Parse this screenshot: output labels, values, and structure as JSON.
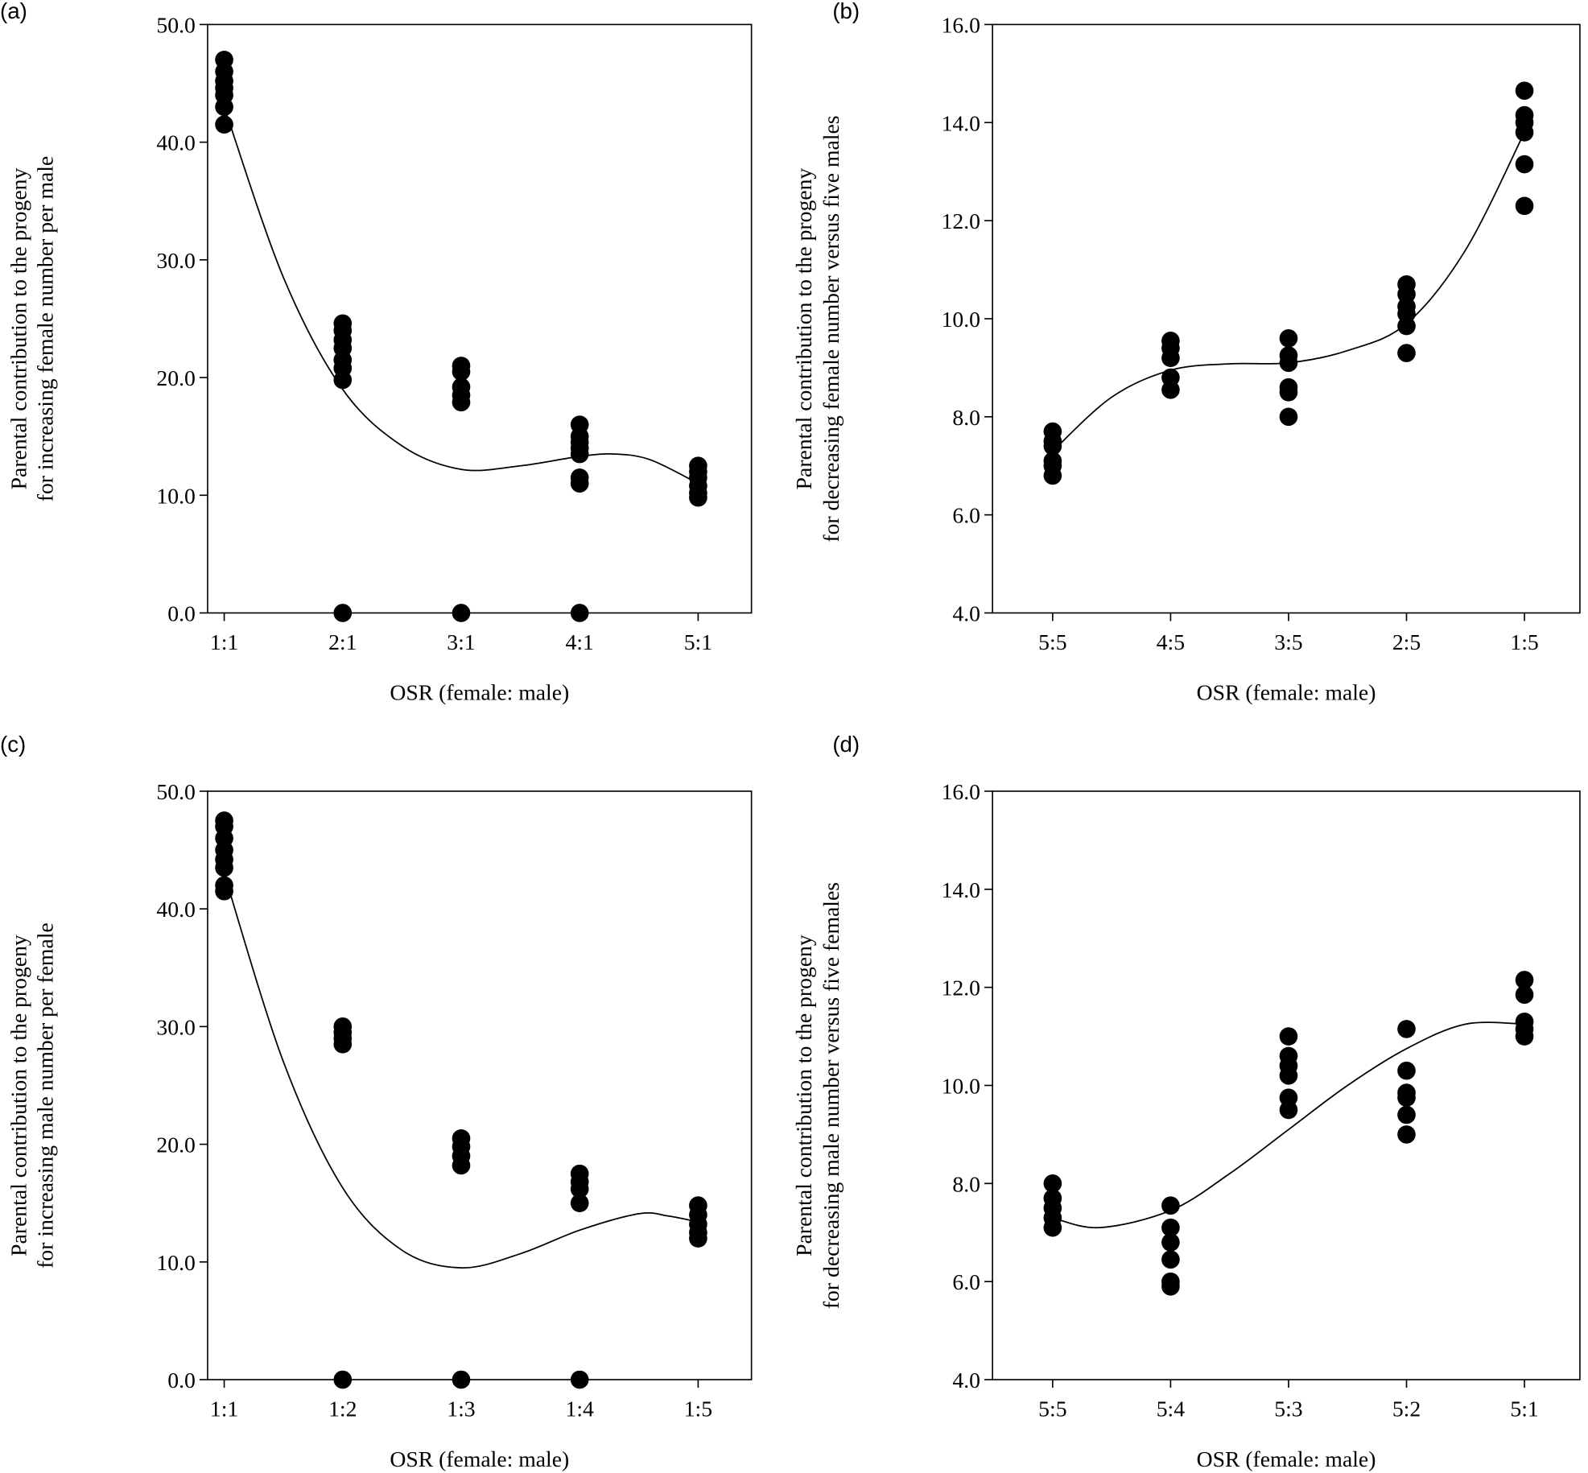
{
  "chart_data": [
    {
      "panel": "(a)",
      "type": "scatter",
      "xlabel": "OSR (female: male)",
      "ylabel": [
        "Parental contribution to the progeny",
        "for increasing female number per male"
      ],
      "categories": [
        "1:1",
        "2:1",
        "3:1",
        "4:1",
        "5:1"
      ],
      "ylim": [
        0,
        50
      ],
      "yticks": [
        "0.0",
        "10.0",
        "20.0",
        "30.0",
        "40.0",
        "50.0"
      ],
      "points": [
        [
          47.0,
          46.0,
          45.2,
          44.6,
          44.0,
          43.0,
          41.5
        ],
        [
          24.6,
          24.0,
          23.2,
          22.5,
          21.5,
          20.8,
          19.8,
          0
        ],
        [
          21.0,
          20.5,
          19.2,
          18.5,
          17.9,
          0
        ],
        [
          16.0,
          15.0,
          14.5,
          14.0,
          13.5,
          11.5,
          11.0,
          0
        ],
        [
          12.5,
          12.0,
          11.5,
          10.8,
          10.2,
          9.8
        ]
      ],
      "fit": [
        [
          1,
          43
        ],
        [
          1.5,
          28.5
        ],
        [
          2,
          19
        ],
        [
          2.5,
          14.2
        ],
        [
          3,
          12.2
        ],
        [
          3.5,
          12.5
        ],
        [
          4,
          13.3
        ],
        [
          4.3,
          13.5
        ],
        [
          4.6,
          13.0
        ],
        [
          5,
          11.0
        ]
      ]
    },
    {
      "panel": "(b)",
      "type": "scatter",
      "xlabel": "OSR (female: male)",
      "ylabel": [
        "Parental contribution to the progeny",
        "for decreasing female number versus five males"
      ],
      "categories": [
        "5:5",
        "4:5",
        "3:5",
        "2:5",
        "1:5"
      ],
      "ylim": [
        4,
        16
      ],
      "yticks": [
        "4.0",
        "6.0",
        "8.0",
        "10.0",
        "12.0",
        "14.0",
        "16.0"
      ],
      "points": [
        [
          7.7,
          7.5,
          7.4,
          7.1,
          7.0,
          6.8
        ],
        [
          9.55,
          9.4,
          9.2,
          8.8,
          8.55
        ],
        [
          9.6,
          9.25,
          9.1,
          8.6,
          8.5,
          8.0
        ],
        [
          10.7,
          10.5,
          10.25,
          10.1,
          9.85,
          9.3
        ],
        [
          14.65,
          14.15,
          14.0,
          13.8,
          13.15,
          12.3
        ]
      ],
      "fit": [
        [
          1,
          7.3
        ],
        [
          1.5,
          8.4
        ],
        [
          2,
          8.95
        ],
        [
          2.5,
          9.08
        ],
        [
          3,
          9.1
        ],
        [
          3.5,
          9.35
        ],
        [
          4,
          9.9
        ],
        [
          4.5,
          11.4
        ],
        [
          5,
          13.8
        ]
      ]
    },
    {
      "panel": "(c)",
      "type": "scatter",
      "xlabel": "OSR (female: male)",
      "ylabel": [
        "Parental contribution to the progeny",
        "for increasing male number per female"
      ],
      "categories": [
        "1:1",
        "1:2",
        "1:3",
        "1:4",
        "1:5"
      ],
      "ylim": [
        0,
        50
      ],
      "yticks": [
        "0.0",
        "10.0",
        "20.0",
        "30.0",
        "40.0",
        "50.0"
      ],
      "points": [
        [
          47.5,
          47.0,
          46.0,
          45.0,
          44.2,
          43.5,
          42.0,
          41.5
        ],
        [
          30.0,
          29.5,
          29.0,
          28.5,
          0
        ],
        [
          20.5,
          19.8,
          19.0,
          18.2,
          0
        ],
        [
          17.5,
          16.8,
          16.2,
          15.0,
          0
        ],
        [
          14.8,
          14.0,
          13.2,
          12.5,
          12.0
        ]
      ],
      "fit": [
        [
          1,
          43
        ],
        [
          1.5,
          27
        ],
        [
          2,
          16.3
        ],
        [
          2.5,
          11
        ],
        [
          3,
          9.5
        ],
        [
          3.5,
          10.7
        ],
        [
          4,
          12.7
        ],
        [
          4.5,
          14.1
        ],
        [
          4.75,
          13.9
        ],
        [
          5,
          13.4
        ]
      ]
    },
    {
      "panel": "(d)",
      "type": "scatter",
      "xlabel": "OSR (female: male)",
      "ylabel": [
        "Parental contribution to the progeny",
        "for decreasing male number versus five females"
      ],
      "categories": [
        "5:5",
        "5:4",
        "5:3",
        "5:2",
        "5:1"
      ],
      "ylim": [
        4,
        16
      ],
      "yticks": [
        "4.0",
        "6.0",
        "8.0",
        "10.0",
        "12.0",
        "14.0",
        "16.0"
      ],
      "points": [
        [
          8.0,
          7.7,
          7.5,
          7.3,
          7.1
        ],
        [
          7.55,
          7.1,
          6.8,
          6.45,
          6.0,
          5.9
        ],
        [
          11.0,
          10.6,
          10.4,
          10.2,
          9.75,
          9.5
        ],
        [
          11.15,
          10.3,
          9.85,
          9.75,
          9.4,
          9.0
        ],
        [
          12.15,
          11.85,
          11.3,
          11.15,
          11.0
        ]
      ],
      "fit": [
        [
          1,
          7.3
        ],
        [
          1.4,
          7.1
        ],
        [
          2,
          7.45
        ],
        [
          2.5,
          8.2
        ],
        [
          3,
          9.1
        ],
        [
          3.5,
          10.0
        ],
        [
          4,
          10.75
        ],
        [
          4.5,
          11.25
        ],
        [
          5,
          11.25
        ]
      ]
    }
  ]
}
